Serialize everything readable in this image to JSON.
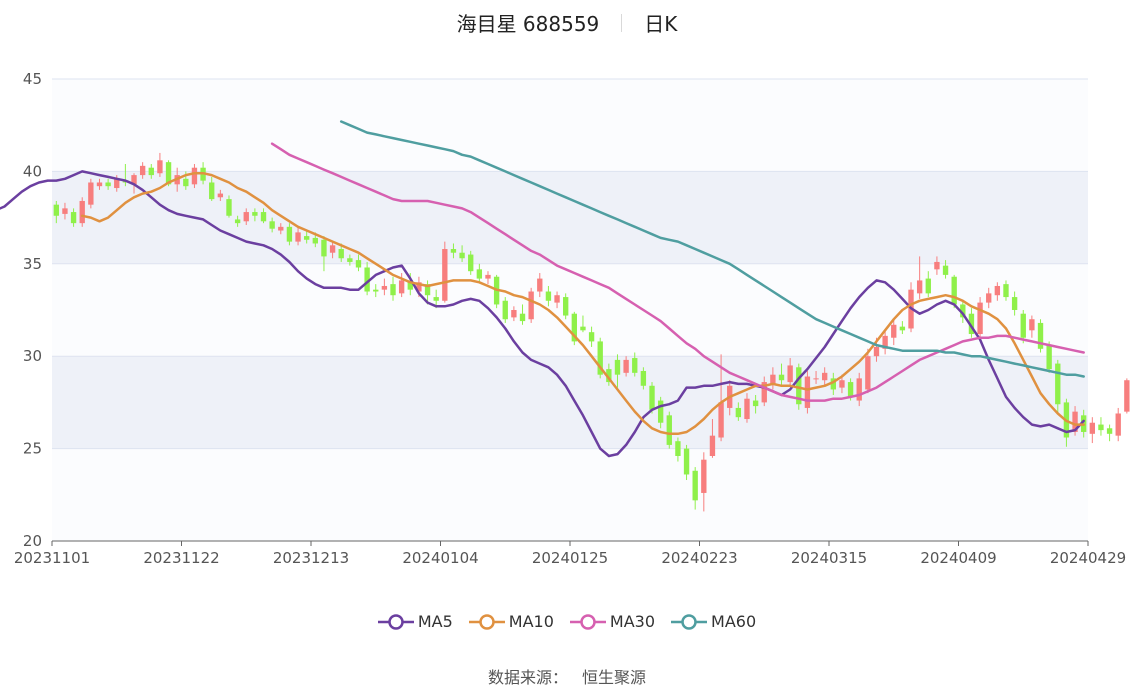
{
  "header": {
    "title": "海目星 688559",
    "period": "日K"
  },
  "source": {
    "label": "数据来源：",
    "value": "恒生聚源"
  },
  "colors": {
    "up": "#f77e7e",
    "down": "#8ff04a",
    "MA5": "#6b3fa0",
    "MA10": "#e09140",
    "MA30": "#d660b0",
    "MA60": "#4f9ea0",
    "band": "#eef1f8",
    "grid": "#dde3f0",
    "axis": "#555555"
  },
  "chart_data": {
    "type": "candlestick",
    "title": "海目星 688559",
    "ylim": [
      20,
      45
    ],
    "yticks": [
      20,
      25,
      30,
      35,
      40,
      45
    ],
    "grid": true,
    "legend_placement": "bottom",
    "x_tick_labels": [
      "20231101",
      "20231122",
      "20231213",
      "20240104",
      "20240125",
      "20240223",
      "20240315",
      "20240409",
      "20240429"
    ],
    "num_days": 120,
    "candles": [
      {
        "o": 38.2,
        "c": 37.6,
        "h": 38.4,
        "l": 37.2
      },
      {
        "o": 37.7,
        "c": 38.0,
        "h": 38.3,
        "l": 37.4
      },
      {
        "o": 37.8,
        "c": 37.2,
        "h": 38.0,
        "l": 37.0
      },
      {
        "o": 37.2,
        "c": 38.4,
        "h": 38.6,
        "l": 37.0
      },
      {
        "o": 38.2,
        "c": 39.4,
        "h": 39.6,
        "l": 38.0
      },
      {
        "o": 39.2,
        "c": 39.4,
        "h": 39.6,
        "l": 39.0
      },
      {
        "o": 39.4,
        "c": 39.2,
        "h": 39.6,
        "l": 39.0
      },
      {
        "o": 39.1,
        "c": 39.6,
        "h": 39.8,
        "l": 38.9
      },
      {
        "o": 39.5,
        "c": 39.4,
        "h": 40.4,
        "l": 39.2
      },
      {
        "o": 39.3,
        "c": 39.8,
        "h": 39.9,
        "l": 38.8
      },
      {
        "o": 39.8,
        "c": 40.3,
        "h": 40.5,
        "l": 39.6
      },
      {
        "o": 40.2,
        "c": 39.8,
        "h": 40.4,
        "l": 39.6
      },
      {
        "o": 39.9,
        "c": 40.6,
        "h": 41.0,
        "l": 39.7
      },
      {
        "o": 40.5,
        "c": 39.3,
        "h": 40.6,
        "l": 39.2
      },
      {
        "o": 39.3,
        "c": 39.8,
        "h": 40.2,
        "l": 38.9
      },
      {
        "o": 39.6,
        "c": 39.2,
        "h": 40.0,
        "l": 39.0
      },
      {
        "o": 39.3,
        "c": 40.2,
        "h": 40.4,
        "l": 39.1
      },
      {
        "o": 40.2,
        "c": 39.5,
        "h": 40.5,
        "l": 39.3
      },
      {
        "o": 39.4,
        "c": 38.5,
        "h": 39.7,
        "l": 38.4
      },
      {
        "o": 38.6,
        "c": 38.8,
        "h": 39.0,
        "l": 38.4
      },
      {
        "o": 38.5,
        "c": 37.6,
        "h": 38.7,
        "l": 37.5
      },
      {
        "o": 37.4,
        "c": 37.2,
        "h": 37.6,
        "l": 37.0
      },
      {
        "o": 37.3,
        "c": 37.8,
        "h": 38.0,
        "l": 37.1
      },
      {
        "o": 37.8,
        "c": 37.6,
        "h": 38.0,
        "l": 37.3
      },
      {
        "o": 37.8,
        "c": 37.3,
        "h": 38.0,
        "l": 37.2
      },
      {
        "o": 37.3,
        "c": 36.9,
        "h": 37.5,
        "l": 36.7
      },
      {
        "o": 36.8,
        "c": 37.0,
        "h": 37.2,
        "l": 36.6
      },
      {
        "o": 37.0,
        "c": 36.2,
        "h": 37.2,
        "l": 36.0
      },
      {
        "o": 36.2,
        "c": 36.7,
        "h": 37.0,
        "l": 36.0
      },
      {
        "o": 36.5,
        "c": 36.3,
        "h": 36.8,
        "l": 36.1
      },
      {
        "o": 36.4,
        "c": 36.1,
        "h": 36.7,
        "l": 35.9
      },
      {
        "o": 36.3,
        "c": 35.4,
        "h": 36.5,
        "l": 34.6
      },
      {
        "o": 35.6,
        "c": 36.0,
        "h": 36.2,
        "l": 35.3
      },
      {
        "o": 35.8,
        "c": 35.3,
        "h": 36.1,
        "l": 35.1
      },
      {
        "o": 35.3,
        "c": 35.1,
        "h": 35.5,
        "l": 34.9
      },
      {
        "o": 35.2,
        "c": 34.8,
        "h": 35.5,
        "l": 34.6
      },
      {
        "o": 34.8,
        "c": 33.5,
        "h": 35.1,
        "l": 33.3
      },
      {
        "o": 33.6,
        "c": 33.5,
        "h": 33.9,
        "l": 33.2
      },
      {
        "o": 33.6,
        "c": 33.8,
        "h": 34.2,
        "l": 33.3
      },
      {
        "o": 33.9,
        "c": 33.3,
        "h": 34.3,
        "l": 33.0
      },
      {
        "o": 33.4,
        "c": 34.1,
        "h": 34.5,
        "l": 33.2
      },
      {
        "o": 34.1,
        "c": 33.6,
        "h": 34.5,
        "l": 33.3
      },
      {
        "o": 33.5,
        "c": 34.0,
        "h": 34.3,
        "l": 33.2
      },
      {
        "o": 33.9,
        "c": 33.3,
        "h": 34.1,
        "l": 32.8
      },
      {
        "o": 33.2,
        "c": 33.0,
        "h": 33.6,
        "l": 32.6
      },
      {
        "o": 33.0,
        "c": 35.8,
        "h": 36.2,
        "l": 32.9
      },
      {
        "o": 35.8,
        "c": 35.6,
        "h": 36.1,
        "l": 35.3
      },
      {
        "o": 35.6,
        "c": 35.3,
        "h": 36.0,
        "l": 35.1
      },
      {
        "o": 35.5,
        "c": 34.6,
        "h": 35.7,
        "l": 34.4
      },
      {
        "o": 34.7,
        "c": 34.2,
        "h": 35.0,
        "l": 34.0
      },
      {
        "o": 34.2,
        "c": 34.4,
        "h": 34.6,
        "l": 33.9
      },
      {
        "o": 34.3,
        "c": 32.8,
        "h": 34.4,
        "l": 32.6
      },
      {
        "o": 33.0,
        "c": 32.0,
        "h": 33.2,
        "l": 31.8
      },
      {
        "o": 32.1,
        "c": 32.5,
        "h": 32.7,
        "l": 31.9
      },
      {
        "o": 32.3,
        "c": 31.9,
        "h": 32.8,
        "l": 31.7
      },
      {
        "o": 32.0,
        "c": 33.5,
        "h": 33.7,
        "l": 31.8
      },
      {
        "o": 33.5,
        "c": 34.2,
        "h": 34.5,
        "l": 33.2
      },
      {
        "o": 33.5,
        "c": 33.0,
        "h": 33.8,
        "l": 32.7
      },
      {
        "o": 32.9,
        "c": 33.3,
        "h": 33.5,
        "l": 32.6
      },
      {
        "o": 33.2,
        "c": 32.2,
        "h": 33.4,
        "l": 32.0
      },
      {
        "o": 32.3,
        "c": 30.8,
        "h": 32.4,
        "l": 30.6
      },
      {
        "o": 31.6,
        "c": 31.4,
        "h": 32.2,
        "l": 31.3
      },
      {
        "o": 31.3,
        "c": 30.8,
        "h": 31.6,
        "l": 30.5
      },
      {
        "o": 30.8,
        "c": 29.0,
        "h": 31.0,
        "l": 28.8
      },
      {
        "o": 29.3,
        "c": 28.6,
        "h": 29.6,
        "l": 28.4
      },
      {
        "o": 29.8,
        "c": 29.0,
        "h": 30.1,
        "l": 28.3
      },
      {
        "o": 29.1,
        "c": 29.8,
        "h": 30.0,
        "l": 28.9
      },
      {
        "o": 29.9,
        "c": 29.1,
        "h": 30.2,
        "l": 28.9
      },
      {
        "o": 29.2,
        "c": 28.4,
        "h": 29.4,
        "l": 28.2
      },
      {
        "o": 28.4,
        "c": 27.1,
        "h": 28.6,
        "l": 26.9
      },
      {
        "o": 27.6,
        "c": 26.4,
        "h": 27.8,
        "l": 26.1
      },
      {
        "o": 26.8,
        "c": 25.2,
        "h": 27.0,
        "l": 25.0
      },
      {
        "o": 25.4,
        "c": 24.6,
        "h": 25.6,
        "l": 24.3
      },
      {
        "o": 25.0,
        "c": 23.6,
        "h": 25.2,
        "l": 23.3
      },
      {
        "o": 23.8,
        "c": 22.2,
        "h": 24.0,
        "l": 21.7
      },
      {
        "o": 22.6,
        "c": 24.4,
        "h": 24.8,
        "l": 21.6
      },
      {
        "o": 24.6,
        "c": 25.7,
        "h": 26.6,
        "l": 24.5
      },
      {
        "o": 25.6,
        "c": 27.5,
        "h": 30.1,
        "l": 25.4
      },
      {
        "o": 27.2,
        "c": 28.4,
        "h": 28.7,
        "l": 26.8
      },
      {
        "o": 27.2,
        "c": 26.7,
        "h": 27.5,
        "l": 26.5
      },
      {
        "o": 26.6,
        "c": 27.7,
        "h": 28.0,
        "l": 26.4
      },
      {
        "o": 27.6,
        "c": 27.3,
        "h": 27.9,
        "l": 26.9
      },
      {
        "o": 27.5,
        "c": 28.6,
        "h": 28.9,
        "l": 27.3
      },
      {
        "o": 28.5,
        "c": 29.0,
        "h": 29.4,
        "l": 28.2
      },
      {
        "o": 29.0,
        "c": 28.7,
        "h": 29.6,
        "l": 28.4
      },
      {
        "o": 28.6,
        "c": 29.5,
        "h": 29.9,
        "l": 28.4
      },
      {
        "o": 29.4,
        "c": 27.4,
        "h": 29.6,
        "l": 27.1
      },
      {
        "o": 27.2,
        "c": 28.9,
        "h": 29.2,
        "l": 26.9
      },
      {
        "o": 28.8,
        "c": 28.8,
        "h": 29.2,
        "l": 28.5
      },
      {
        "o": 28.7,
        "c": 29.1,
        "h": 29.4,
        "l": 28.4
      },
      {
        "o": 28.8,
        "c": 28.2,
        "h": 29.1,
        "l": 27.9
      },
      {
        "o": 28.3,
        "c": 28.7,
        "h": 29.0,
        "l": 28.0
      },
      {
        "o": 28.6,
        "c": 27.8,
        "h": 28.8,
        "l": 27.6
      },
      {
        "o": 27.6,
        "c": 28.8,
        "h": 29.1,
        "l": 27.3
      },
      {
        "o": 28.2,
        "c": 30.0,
        "h": 30.4,
        "l": 28.0
      },
      {
        "o": 30.0,
        "c": 30.5,
        "h": 31.0,
        "l": 29.7
      },
      {
        "o": 30.4,
        "c": 31.1,
        "h": 31.4,
        "l": 30.1
      },
      {
        "o": 31.0,
        "c": 31.7,
        "h": 32.0,
        "l": 30.6
      },
      {
        "o": 31.6,
        "c": 31.4,
        "h": 31.9,
        "l": 31.2
      },
      {
        "o": 31.5,
        "c": 33.6,
        "h": 34.0,
        "l": 31.3
      },
      {
        "o": 33.4,
        "c": 34.1,
        "h": 35.4,
        "l": 33.1
      },
      {
        "o": 34.2,
        "c": 33.4,
        "h": 34.6,
        "l": 33.2
      },
      {
        "o": 34.7,
        "c": 35.1,
        "h": 35.4,
        "l": 34.4
      },
      {
        "o": 34.9,
        "c": 34.4,
        "h": 35.2,
        "l": 34.2
      },
      {
        "o": 34.3,
        "c": 32.8,
        "h": 34.4,
        "l": 32.6
      },
      {
        "o": 32.8,
        "c": 32.1,
        "h": 33.0,
        "l": 31.8
      },
      {
        "o": 32.3,
        "c": 31.2,
        "h": 32.6,
        "l": 31.0
      },
      {
        "o": 31.2,
        "c": 32.9,
        "h": 33.2,
        "l": 31.0
      },
      {
        "o": 32.9,
        "c": 33.4,
        "h": 33.7,
        "l": 32.6
      },
      {
        "o": 33.3,
        "c": 33.8,
        "h": 34.0,
        "l": 33.0
      },
      {
        "o": 33.9,
        "c": 33.2,
        "h": 34.1,
        "l": 33.0
      },
      {
        "o": 33.2,
        "c": 32.5,
        "h": 33.5,
        "l": 32.2
      },
      {
        "o": 32.3,
        "c": 31.0,
        "h": 32.5,
        "l": 30.7
      },
      {
        "o": 31.4,
        "c": 32.0,
        "h": 32.2,
        "l": 31.0
      },
      {
        "o": 31.8,
        "c": 30.4,
        "h": 32.0,
        "l": 30.2
      },
      {
        "o": 30.6,
        "c": 29.3,
        "h": 30.8,
        "l": 29.1
      },
      {
        "o": 29.6,
        "c": 27.4,
        "h": 29.8,
        "l": 26.9
      },
      {
        "o": 27.5,
        "c": 25.6,
        "h": 27.7,
        "l": 25.1
      },
      {
        "o": 25.9,
        "c": 27.0,
        "h": 27.3,
        "l": 25.7
      },
      {
        "o": 26.8,
        "c": 25.9,
        "h": 27.1,
        "l": 25.6
      },
      {
        "o": 25.8,
        "c": 26.4,
        "h": 26.7,
        "l": 25.3
      },
      {
        "o": 26.3,
        "c": 26.0,
        "h": 26.7,
        "l": 25.7
      },
      {
        "o": 26.1,
        "c": 25.8,
        "h": 26.3,
        "l": 25.4
      },
      {
        "o": 25.7,
        "c": 26.9,
        "h": 27.2,
        "l": 25.4
      },
      {
        "o": 27.0,
        "c": 28.7,
        "h": 28.8,
        "l": 26.9
      }
    ],
    "ma_series": [
      {
        "name": "MA5",
        "values": [
          37.7,
          37.8,
          37.9,
          38.1,
          38.5,
          38.9,
          39.2,
          39.4,
          39.5,
          39.5,
          39.6,
          39.8,
          40.0,
          39.9,
          39.8,
          39.7,
          39.6,
          39.5,
          39.3,
          39.0,
          38.6,
          38.2,
          37.9,
          37.7,
          37.6,
          37.5,
          37.4,
          37.1,
          36.8,
          36.6,
          36.4,
          36.2,
          36.1,
          36.0,
          35.8,
          35.5,
          35.1,
          34.6,
          34.2,
          33.9,
          33.7,
          33.7,
          33.7,
          33.6,
          33.6,
          34.0,
          34.4,
          34.6,
          34.8,
          34.9,
          34.2,
          33.4,
          32.9,
          32.7,
          32.7,
          32.8,
          33.0,
          33.1,
          33.0,
          32.6,
          32.1,
          31.5,
          30.8,
          30.2,
          29.8,
          29.6,
          29.4,
          29.0,
          28.4,
          27.6,
          26.8,
          25.9,
          25.0,
          24.6,
          24.7,
          25.2,
          25.9,
          26.7,
          27.1,
          27.3,
          27.4,
          27.6,
          28.3,
          28.3,
          28.4,
          28.4,
          28.5,
          28.6,
          28.5,
          28.5,
          28.4,
          28.3,
          28.1,
          27.9,
          28.2,
          28.8,
          29.3,
          29.9,
          30.5,
          31.2,
          31.9,
          32.6,
          33.2,
          33.7,
          34.1,
          34.0,
          33.6,
          33.1,
          32.6,
          32.3,
          32.5,
          32.8,
          33.0,
          32.8,
          32.3,
          31.6,
          30.9,
          29.8,
          28.8,
          27.8,
          27.2,
          26.7,
          26.3,
          26.2,
          26.3,
          26.1,
          25.9,
          26.0,
          26.5
        ]
      },
      {
        "name": "MA10",
        "values": [
          37.6,
          37.5,
          37.3,
          37.5,
          37.9,
          38.3,
          38.6,
          38.8,
          38.9,
          39.1,
          39.4,
          39.6,
          39.8,
          39.9,
          39.9,
          39.8,
          39.6,
          39.4,
          39.1,
          38.9,
          38.6,
          38.3,
          37.9,
          37.6,
          37.3,
          37.0,
          36.8,
          36.6,
          36.4,
          36.2,
          36.0,
          35.8,
          35.6,
          35.3,
          35.0,
          34.7,
          34.4,
          34.2,
          34.0,
          33.9,
          33.8,
          33.9,
          34.0,
          34.1,
          34.1,
          34.1,
          34.0,
          33.8,
          33.6,
          33.5,
          33.3,
          33.2,
          33.0,
          32.8,
          32.5,
          32.1,
          31.6,
          31.1,
          30.6,
          30.0,
          29.4,
          28.8,
          28.2,
          27.6,
          27.0,
          26.5,
          26.1,
          25.9,
          25.8,
          25.8,
          25.9,
          26.2,
          26.6,
          27.1,
          27.5,
          27.8,
          28.0,
          28.2,
          28.4,
          28.4,
          28.5,
          28.4,
          28.4,
          28.3,
          28.2,
          28.3,
          28.4,
          28.6,
          28.9,
          29.3,
          29.7,
          30.2,
          30.8,
          31.4,
          32.0,
          32.5,
          32.8,
          33.0,
          33.1,
          33.2,
          33.3,
          33.2,
          33.0,
          32.7,
          32.5,
          32.3,
          32.0,
          31.5,
          30.7,
          29.8,
          28.9,
          28.0,
          27.4,
          26.9,
          26.5,
          26.3,
          26.3
        ]
      },
      {
        "name": "MA30",
        "values": [
          41.5,
          41.2,
          40.9,
          40.7,
          40.5,
          40.3,
          40.1,
          39.9,
          39.7,
          39.5,
          39.3,
          39.1,
          38.9,
          38.7,
          38.5,
          38.4,
          38.4,
          38.4,
          38.4,
          38.3,
          38.2,
          38.1,
          38.0,
          37.8,
          37.5,
          37.2,
          36.9,
          36.6,
          36.3,
          36.0,
          35.7,
          35.5,
          35.2,
          34.9,
          34.7,
          34.5,
          34.3,
          34.1,
          33.9,
          33.7,
          33.4,
          33.1,
          32.8,
          32.5,
          32.2,
          31.9,
          31.5,
          31.1,
          30.7,
          30.4,
          30.0,
          29.7,
          29.4,
          29.1,
          28.9,
          28.7,
          28.5,
          28.3,
          28.1,
          27.9,
          27.8,
          27.7,
          27.6,
          27.6,
          27.6,
          27.7,
          27.7,
          27.8,
          27.9,
          28.1,
          28.3,
          28.6,
          28.9,
          29.2,
          29.5,
          29.8,
          30.0,
          30.2,
          30.4,
          30.6,
          30.8,
          30.9,
          31.0,
          31.0,
          31.1,
          31.1,
          31.0,
          30.9,
          30.8,
          30.7,
          30.6,
          30.5,
          30.4,
          30.3,
          30.2
        ]
      },
      {
        "name": "MA60",
        "values": [
          42.7,
          42.5,
          42.3,
          42.1,
          42.0,
          41.9,
          41.8,
          41.7,
          41.6,
          41.5,
          41.4,
          41.3,
          41.2,
          41.1,
          40.9,
          40.8,
          40.6,
          40.4,
          40.2,
          40.0,
          39.8,
          39.6,
          39.4,
          39.2,
          39.0,
          38.8,
          38.6,
          38.4,
          38.2,
          38.0,
          37.8,
          37.6,
          37.4,
          37.2,
          37.0,
          36.8,
          36.6,
          36.4,
          36.3,
          36.2,
          36.0,
          35.8,
          35.6,
          35.4,
          35.2,
          35.0,
          34.7,
          34.4,
          34.1,
          33.8,
          33.5,
          33.2,
          32.9,
          32.6,
          32.3,
          32.0,
          31.8,
          31.6,
          31.4,
          31.2,
          31.0,
          30.8,
          30.6,
          30.5,
          30.4,
          30.3,
          30.3,
          30.3,
          30.3,
          30.3,
          30.2,
          30.2,
          30.1,
          30.0,
          30.0,
          29.9,
          29.8,
          29.7,
          29.6,
          29.5,
          29.4,
          29.3,
          29.2,
          29.1,
          29.0,
          29.0,
          28.9
        ]
      }
    ]
  }
}
